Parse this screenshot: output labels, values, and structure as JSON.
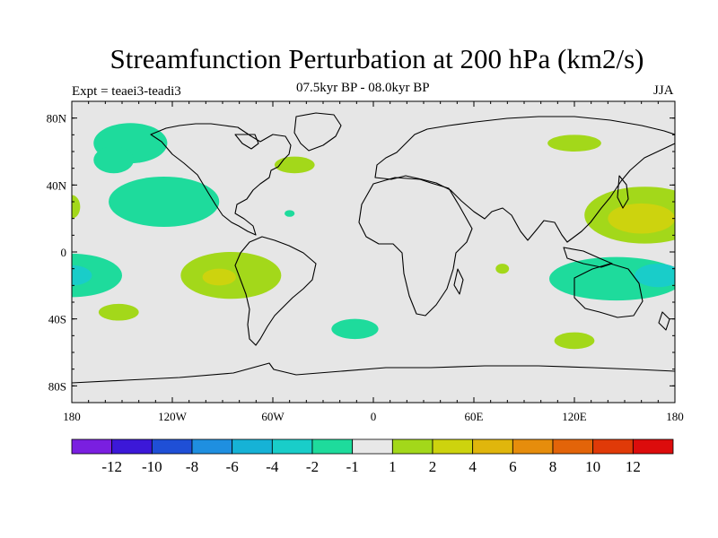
{
  "header": {
    "title": "Streamfunction Perturbation at 200 hPa (km2/s)",
    "subtitle": "07.5kyr BP - 08.0kyr BP",
    "experiment": "Expt = teaei3-teadi3",
    "season": "JJA"
  },
  "axes": {
    "x_ticks": [
      {
        "lon": -180,
        "label": "180"
      },
      {
        "lon": -120,
        "label": "120W"
      },
      {
        "lon": -60,
        "label": "60W"
      },
      {
        "lon": 0,
        "label": "0"
      },
      {
        "lon": 60,
        "label": "60E"
      },
      {
        "lon": 120,
        "label": "120E"
      },
      {
        "lon": 180,
        "label": "180"
      }
    ],
    "y_ticks": [
      {
        "lat": 80,
        "label": "80N"
      },
      {
        "lat": 40,
        "label": "40N"
      },
      {
        "lat": 0,
        "label": "0"
      },
      {
        "lat": -40,
        "label": "40S"
      },
      {
        "lat": -80,
        "label": "80S"
      }
    ],
    "lon_range": [
      -180,
      180
    ],
    "lat_range": [
      -90,
      90
    ]
  },
  "colorbar": {
    "colors": [
      "#7a1fe0",
      "#3c18d8",
      "#1f4fd6",
      "#1f8fe0",
      "#16b2d6",
      "#19cdc9",
      "#1edb9c",
      "#e8e8e8",
      "#a3d81a",
      "#cdd30e",
      "#e0b60c",
      "#e68d0c",
      "#e36409",
      "#e03a08",
      "#dc0c0c"
    ],
    "labels": [
      "-12",
      "-10",
      "-8",
      "-6",
      "-4",
      "-2",
      "-1",
      "1",
      "2",
      "4",
      "6",
      "8",
      "10",
      "12"
    ]
  },
  "anomalies": [
    {
      "lon": -145,
      "lat": 65,
      "rlon": 22,
      "rlat": 12,
      "color": "#1edb9c"
    },
    {
      "lon": -155,
      "lat": 55,
      "rlon": 12,
      "rlat": 8,
      "color": "#1edb9c"
    },
    {
      "lon": -125,
      "lat": 30,
      "rlon": 33,
      "rlat": 15,
      "color": "#1edb9c"
    },
    {
      "lon": -180,
      "lat": 27,
      "rlon": 5,
      "rlat": 7,
      "color": "#a3d81a"
    },
    {
      "lon": -180,
      "lat": -14,
      "rlon": 30,
      "rlat": 13,
      "color": "#1edb9c"
    },
    {
      "lon": -180,
      "lat": -14,
      "rlon": 12,
      "rlat": 6,
      "color": "#19cdc9"
    },
    {
      "lon": -152,
      "lat": -36,
      "rlon": 12,
      "rlat": 5,
      "color": "#a3d81a"
    },
    {
      "lon": -85,
      "lat": -14,
      "rlon": 30,
      "rlat": 14,
      "color": "#a3d81a"
    },
    {
      "lon": -92,
      "lat": -15,
      "rlon": 10,
      "rlat": 5,
      "color": "#cdd30e"
    },
    {
      "lon": -47,
      "lat": 52,
      "rlon": 12,
      "rlat": 5,
      "color": "#a3d81a"
    },
    {
      "lon": -50,
      "lat": 23,
      "rlon": 3,
      "rlat": 2,
      "color": "#1edb9c"
    },
    {
      "lon": -11,
      "lat": -46,
      "rlon": 14,
      "rlat": 6,
      "color": "#1edb9c"
    },
    {
      "lon": 77,
      "lat": -10,
      "rlon": 4,
      "rlat": 3,
      "color": "#a3d81a"
    },
    {
      "lon": 120,
      "lat": 65,
      "rlon": 16,
      "rlat": 5,
      "color": "#a3d81a"
    },
    {
      "lon": 162,
      "lat": 22,
      "rlon": 36,
      "rlat": 17,
      "color": "#a3d81a"
    },
    {
      "lon": 160,
      "lat": 20,
      "rlon": 20,
      "rlat": 9,
      "color": "#cdd30e"
    },
    {
      "lon": 145,
      "lat": -16,
      "rlon": 40,
      "rlat": 13,
      "color": "#1edb9c"
    },
    {
      "lon": 170,
      "lat": -14,
      "rlon": 14,
      "rlat": 7,
      "color": "#19cdc9"
    },
    {
      "lon": 120,
      "lat": -53,
      "rlon": 12,
      "rlat": 5,
      "color": "#a3d81a"
    }
  ]
}
